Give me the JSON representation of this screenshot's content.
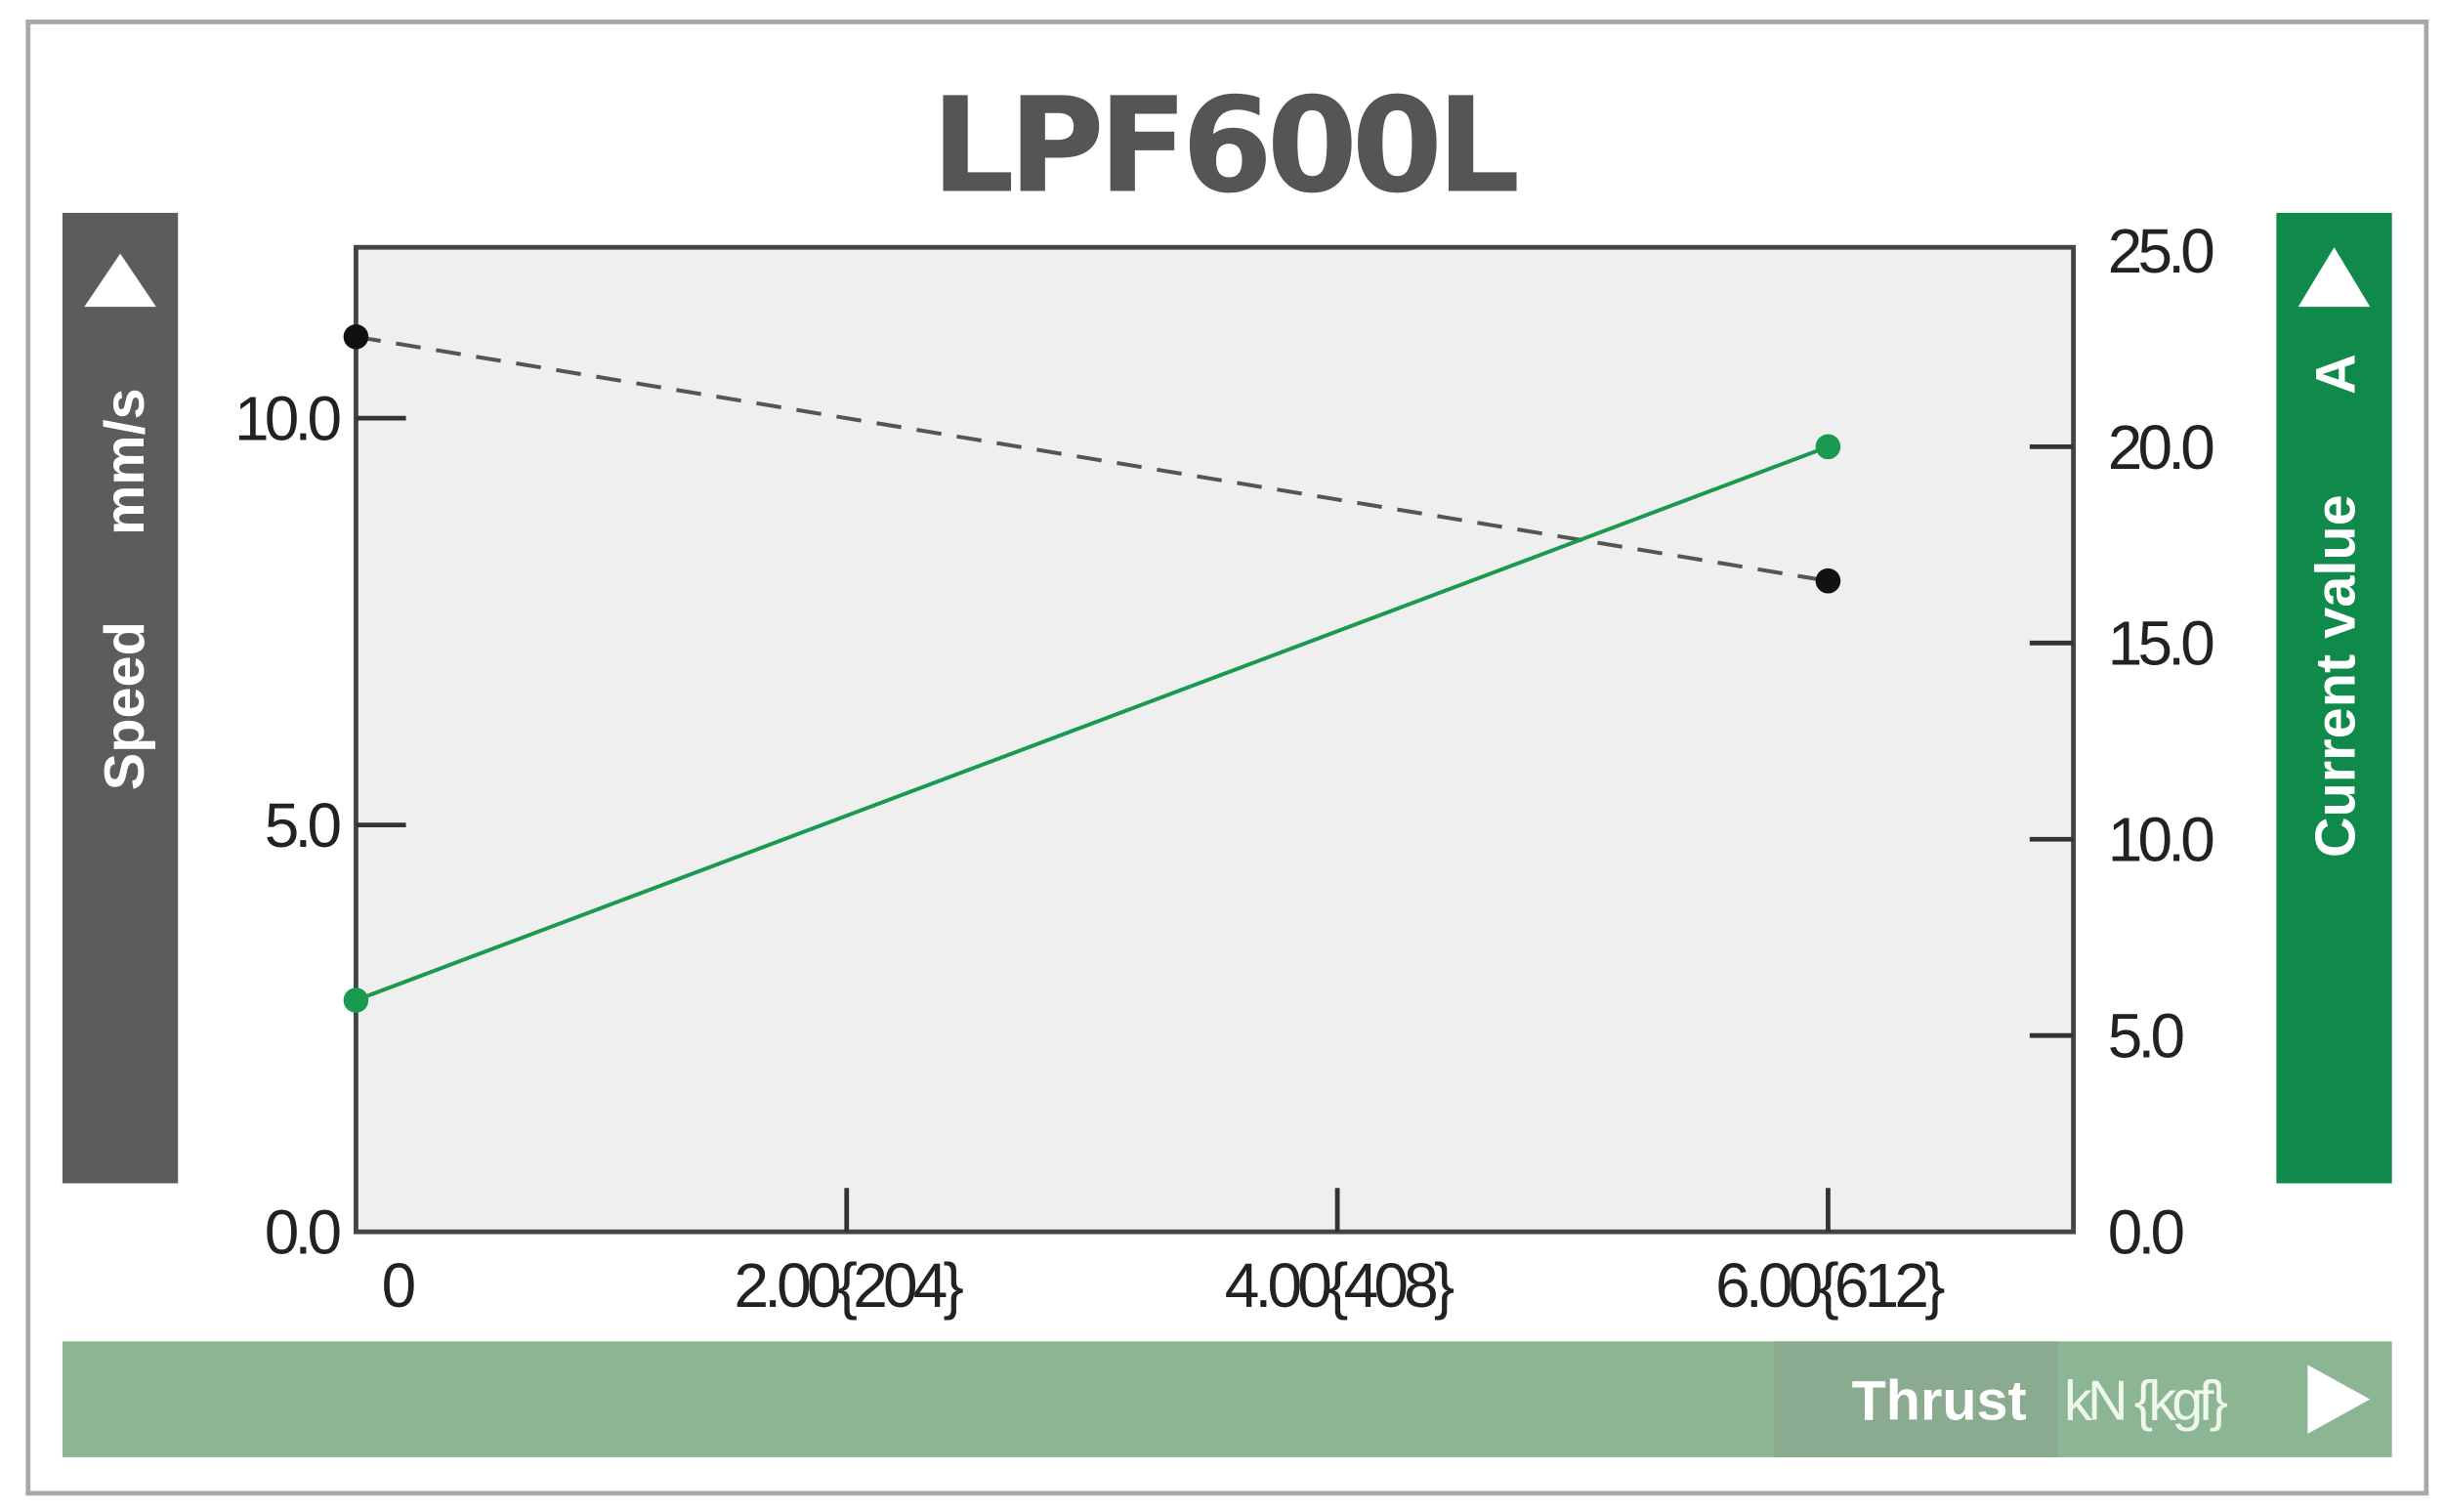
{
  "chart_data": {
    "type": "line",
    "title": "LPF600L",
    "xlabel": "Thrust",
    "xunit": "kN {kgf}",
    "ylabel_left": "Speed",
    "yunit_left": "mm/s",
    "ylabel_right": "Current value",
    "yunit_right": "A",
    "xlim": [
      0,
      7
    ],
    "ylim_left": [
      0,
      12.1
    ],
    "ylim_right": [
      0,
      25
    ],
    "x_ticks": [
      {
        "value": 0,
        "label": "0"
      },
      {
        "value": 2,
        "label": "2.00{204}"
      },
      {
        "value": 4,
        "label": "4.00{408}"
      },
      {
        "value": 6,
        "label": "6.00{612}"
      }
    ],
    "y_left_ticks": [
      {
        "value": 0,
        "label": "0.0"
      },
      {
        "value": 5,
        "label": "5.0"
      },
      {
        "value": 10,
        "label": "10.0"
      }
    ],
    "y_right_ticks": [
      {
        "value": 0,
        "label": "0.0"
      },
      {
        "value": 5,
        "label": "5.0"
      },
      {
        "value": 10,
        "label": "10.0"
      },
      {
        "value": 15,
        "label": "15.0"
      },
      {
        "value": 20,
        "label": "20.0"
      },
      {
        "value": 25,
        "label": "25.0"
      }
    ],
    "grid": false,
    "series": [
      {
        "axis": "left",
        "style": "dashed",
        "color": "#111111",
        "x": [
          0,
          6
        ],
        "y": [
          11.0,
          8.0
        ]
      },
      {
        "axis": "right",
        "style": "solid",
        "color": "#1a9a50",
        "x": [
          0,
          6
        ],
        "y": [
          5.9,
          20.0
        ]
      }
    ],
    "colors": {
      "plot_bg": "#efefef",
      "left_band": "#5c5c5c",
      "right_band": "#108a4a",
      "bottom_band": "#8cb594",
      "title": "#555555"
    }
  }
}
